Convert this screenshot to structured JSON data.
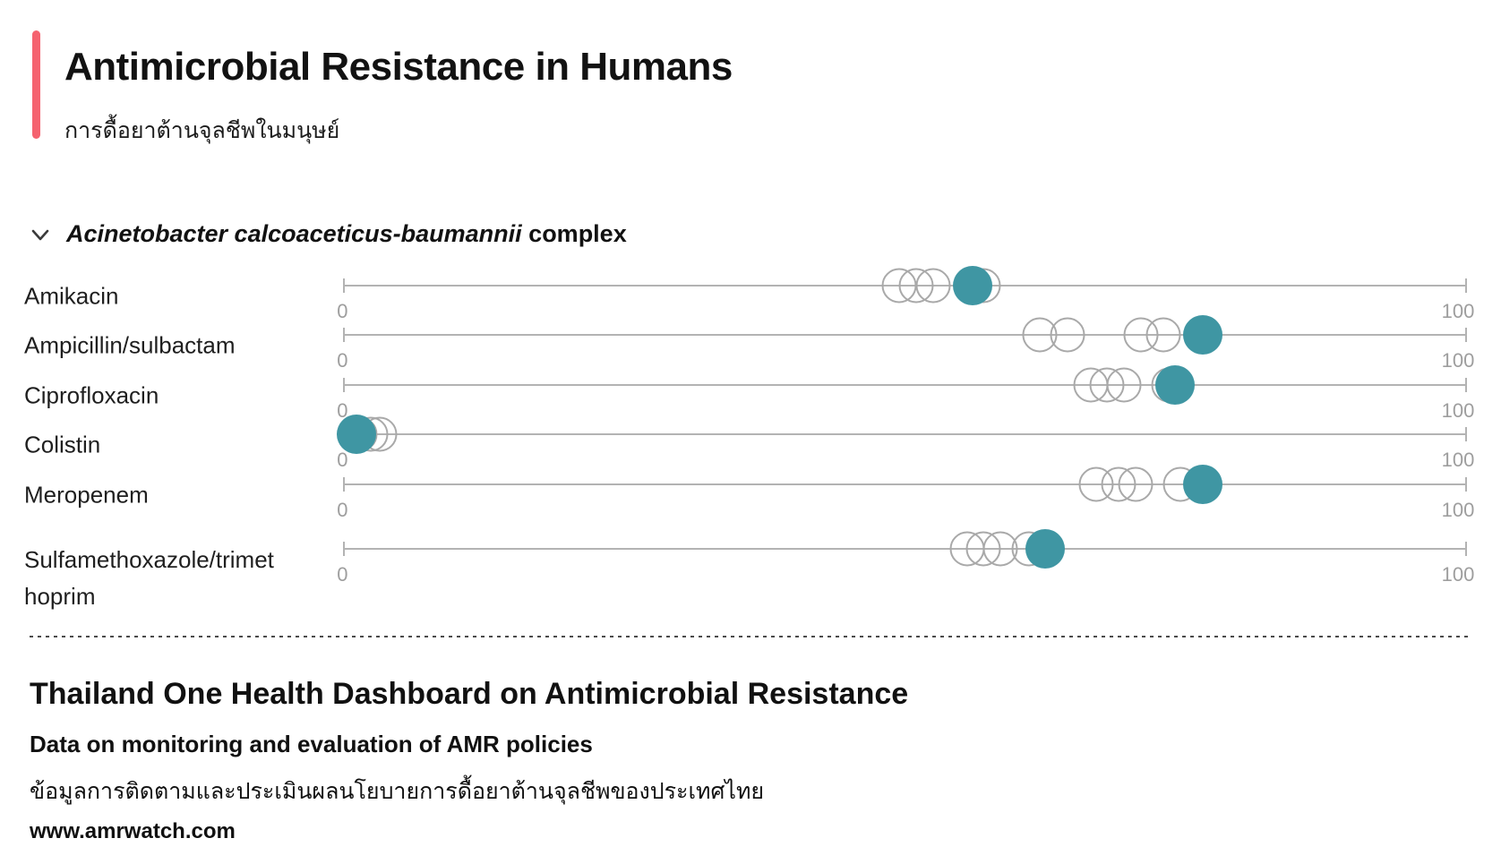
{
  "header": {
    "title": "Antimicrobial Resistance in Humans",
    "subtitle_thai": "การดื้อยาต้านจุลชีพในมนุษย์"
  },
  "section": {
    "organism_italic": "Acinetobacter calcoaceticus-baumannii",
    "organism_suffix": " complex",
    "chevron_icon": "chevron-down"
  },
  "chart_data": {
    "type": "scatter",
    "subtype": "horizontal-dot-strip-plot",
    "title": "Acinetobacter calcoaceticus-baumannii complex",
    "x_axis": {
      "min": 0,
      "max": 100,
      "tick_labels": [
        "0",
        "100"
      ],
      "grid": false
    },
    "marker_styles": [
      "open-circle",
      "filled-circle"
    ],
    "rows": [
      {
        "label": "Amikacin",
        "open_values": [
          49.5,
          51,
          52.5,
          57
        ],
        "filled_value": 56
      },
      {
        "label": "Ampicillin/sulbactam",
        "open_values": [
          62,
          64.5,
          71,
          73
        ],
        "filled_value": 76.5
      },
      {
        "label": "Ciprofloxacin",
        "open_values": [
          66.5,
          68,
          69.5,
          73.5
        ],
        "filled_value": 74
      },
      {
        "label": "Colistin",
        "open_values": [
          1.5,
          2.5,
          3.3
        ],
        "filled_value": 1.2
      },
      {
        "label": "Meropenem",
        "open_values": [
          67,
          69,
          70.5,
          74.5
        ],
        "filled_value": 76.5
      },
      {
        "label": "Sulfamethoxazole/trimethoprim",
        "label_lines": [
          "Sulfamethoxazole/trimet",
          "hoprim"
        ],
        "open_values": [
          55.5,
          57,
          58.5,
          61
        ],
        "filled_value": 62.5
      }
    ]
  },
  "footer": {
    "title": "Thailand One Health Dashboard on Antimicrobial Resistance",
    "subtitle": "Data on monitoring and evaluation of AMR policies",
    "subtitle_thai": "ข้อมูลการติดตามและประเมินผลนโยบายการดื้อยาต้านจุลชีพของประเทศไทย",
    "website": "www.amrwatch.com"
  },
  "colors": {
    "accent_bar": "#F5626F",
    "filled_dot": "#3F96A3",
    "open_dot_stroke": "#A9A9A9",
    "axis_line": "#B3B3B3",
    "axis_tick_label": "#9E9E9E",
    "text": "#161616"
  }
}
